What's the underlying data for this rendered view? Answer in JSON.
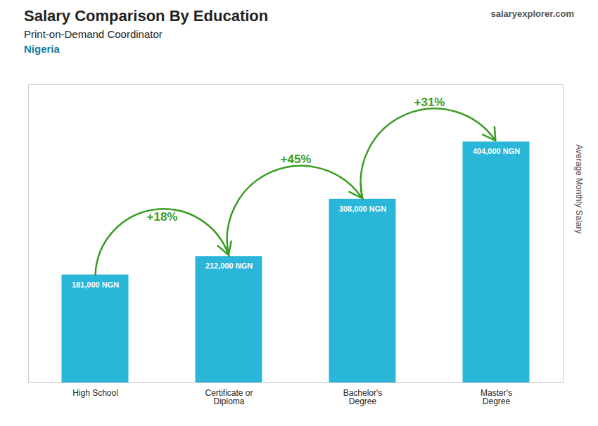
{
  "chart_data": {
    "type": "bar",
    "title": "Salary Comparison By Education",
    "subtitle": "Print-on-Demand Coordinator",
    "country": "Nigeria",
    "source": "salaryexplorer.com",
    "ylabel": "Average Monthly Salary",
    "categories": [
      "High School",
      "Certificate or\nDiploma",
      "Bachelor's\nDegree",
      "Master's\nDegree"
    ],
    "values": [
      181000,
      212000,
      308000,
      404000
    ],
    "value_labels": [
      "181,000 NGN",
      "212,000 NGN",
      "308,000 NGN",
      "404,000 NGN"
    ],
    "data_labels": true,
    "color": "#29b6d8",
    "ylim": [
      0,
      500000
    ],
    "tick_labels": "x",
    "annotations": [
      {
        "text": "+18%",
        "from": "High School",
        "to": "Certificate or\nDiploma"
      },
      {
        "text": "+45%",
        "from": "Certificate or\nDiploma",
        "to": "Bachelor's\nDegree"
      },
      {
        "text": "+31%",
        "from": "Bachelor's\nDegree",
        "to": "Master's\nDegree"
      }
    ]
  }
}
